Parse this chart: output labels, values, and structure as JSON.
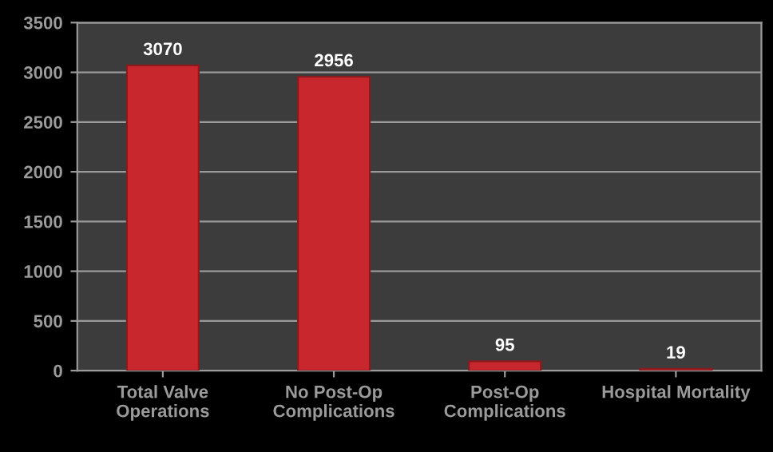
{
  "chart_data": {
    "type": "bar",
    "categories": [
      "Total Valve\nOperations",
      "No Post-Op\nComplications",
      "Post-Op\nComplications",
      "Hospital Mortality"
    ],
    "values": [
      3070,
      2956,
      95,
      19
    ],
    "color": "#c8282d",
    "ylim": [
      0,
      3500
    ],
    "yticks": [
      0,
      500,
      1000,
      1500,
      2000,
      2500,
      3000,
      3500
    ],
    "grid": "y",
    "data_labels": true,
    "legend": false
  }
}
